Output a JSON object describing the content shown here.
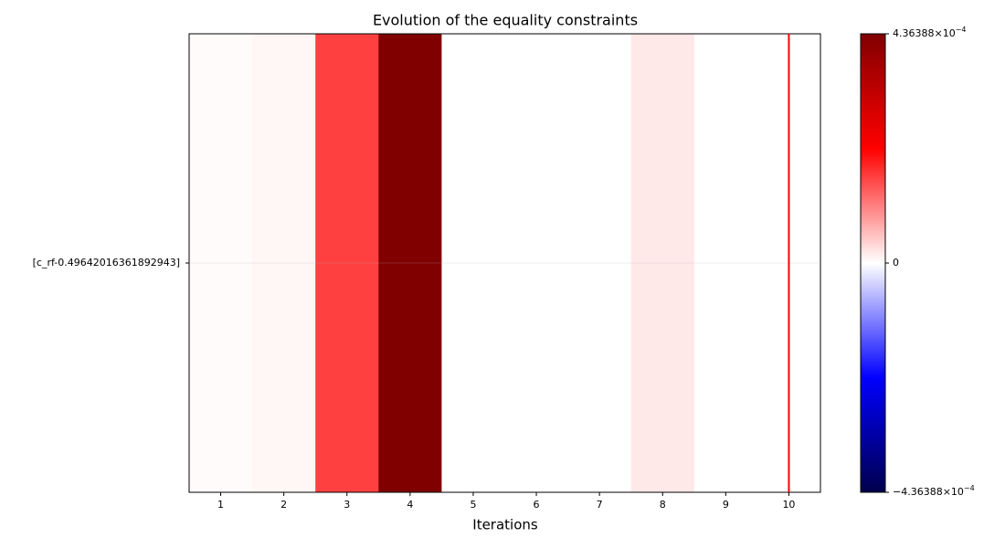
{
  "chart_data": {
    "type": "heatmap",
    "title": "Evolution of the equality constraints",
    "x_label": "Iterations",
    "rows": [
      "[c_rf-0.49642016361892943]"
    ],
    "x": [
      1,
      2,
      3,
      4,
      5,
      6,
      7,
      8,
      9,
      10
    ],
    "values": [
      [
        3e-06,
        7.6e-06,
        0.0001636,
        0.000436388,
        0,
        0,
        0,
        1.96e-05,
        0,
        0
      ]
    ],
    "xlim": [
      0.5,
      10.5
    ],
    "xticks": [
      1,
      2,
      3,
      4,
      5,
      6,
      7,
      8,
      9,
      10
    ],
    "colormap": "seismic",
    "zlim": [
      -0.000436388,
      0.000436388
    ],
    "zticks": [
      {
        "value": -0.000436388,
        "label": "−4.36388×10",
        "exponent": "−4"
      },
      0,
      {
        "value": 0.000436388,
        "label": "4.36388×10",
        "exponent": "−4"
      }
    ],
    "current_x": 10,
    "current_line_color": "#ff0000",
    "grid": true
  }
}
